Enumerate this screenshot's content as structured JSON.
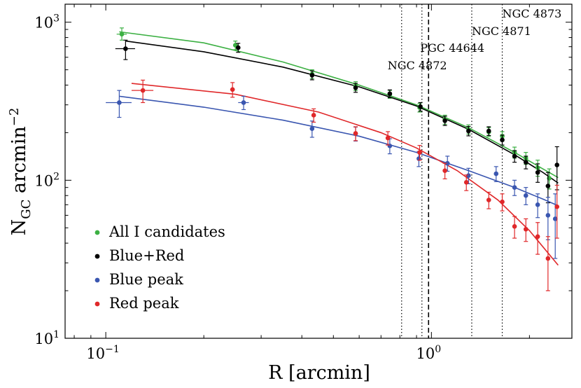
{
  "chart_data": {
    "type": "scatter",
    "xlabel": "R [arcmin]",
    "ylabel_main": "N",
    "ylabel_sub": "GC",
    "ylabel_rest": " arcmin",
    "ylabel_sup": "−2",
    "x_scale": "log",
    "y_scale": "log",
    "xlim": [
      0.075,
      2.7
    ],
    "ylim": [
      10,
      1300
    ],
    "x_ticks": [
      {
        "value": 0.1,
        "base": "10",
        "exp": "−1"
      },
      {
        "value": 1,
        "base": "10",
        "exp": "0"
      }
    ],
    "y_ticks": [
      {
        "value": 10,
        "base": "10",
        "exp": "1"
      },
      {
        "value": 100,
        "base": "10",
        "exp": "2"
      },
      {
        "value": 1000,
        "base": "10",
        "exp": "3"
      }
    ],
    "grid": false,
    "legend_position": "bottom-left",
    "series": [
      {
        "name": "All I candidates",
        "color": "#3cb043",
        "points": [
          {
            "x": 0.112,
            "y": 840,
            "yerr": [
              70,
              80
            ],
            "xerr": [
              0.004,
              0.004
            ]
          },
          {
            "x": 0.25,
            "y": 715,
            "yerr": [
              45,
              45
            ],
            "xerr": [
              0.004,
              0.004
            ]
          },
          {
            "x": 0.43,
            "y": 470,
            "yerr": [
              30,
              30
            ],
            "xerr": [
              0.004,
              0.004
            ]
          },
          {
            "x": 0.585,
            "y": 395,
            "yerr": [
              25,
              25
            ],
            "xerr": [
              0.005,
              0.005
            ]
          },
          {
            "x": 0.745,
            "y": 350,
            "yerr": [
              20,
              20
            ],
            "xerr": [
              0.005,
              0.005
            ]
          },
          {
            "x": 0.92,
            "y": 288,
            "yerr": [
              18,
              18
            ],
            "xerr": [
              0.008,
              0.008
            ]
          },
          {
            "x": 1.1,
            "y": 242,
            "yerr": [
              16,
              16
            ],
            "xerr": [
              0.008,
              0.008
            ]
          },
          {
            "x": 1.3,
            "y": 210,
            "yerr": [
              14,
              14
            ],
            "xerr": [
              0.01,
              0.01
            ]
          },
          {
            "x": 1.5,
            "y": 202,
            "yerr": [
              13,
              13
            ],
            "xerr": [
              0.01,
              0.01
            ]
          },
          {
            "x": 1.65,
            "y": 190,
            "yerr": [
              13,
              13
            ],
            "xerr": [
              0.01,
              0.01
            ]
          },
          {
            "x": 1.8,
            "y": 150,
            "yerr": [
              12,
              12
            ],
            "xerr": [
              0.012,
              0.012
            ]
          },
          {
            "x": 1.95,
            "y": 138,
            "yerr": [
              12,
              12
            ],
            "xerr": [
              0.012,
              0.012
            ]
          },
          {
            "x": 2.12,
            "y": 120,
            "yerr": [
              14,
              14
            ],
            "xerr": [
              0.012,
              0.012
            ]
          },
          {
            "x": 2.3,
            "y": 103,
            "yerr": [
              15,
              15
            ],
            "xerr": [
              0.012,
              0.012
            ]
          }
        ],
        "fit": [
          [
            0.11,
            870
          ],
          [
            0.2,
            740
          ],
          [
            0.35,
            560
          ],
          [
            0.6,
            400
          ],
          [
            0.9,
            300
          ],
          [
            1.3,
            215
          ],
          [
            1.8,
            150
          ],
          [
            2.2,
            118
          ],
          [
            2.45,
            104
          ]
        ]
      },
      {
        "name": "Blue+Red",
        "color": "#000000",
        "points": [
          {
            "x": 0.115,
            "y": 680,
            "yerr": [
              100,
              90
            ],
            "xerr": [
              0.008,
              0.008
            ]
          },
          {
            "x": 0.255,
            "y": 690,
            "yerr": [
              45,
              45
            ],
            "xerr": [
              0.004,
              0.004
            ]
          },
          {
            "x": 0.43,
            "y": 462,
            "yerr": [
              30,
              30
            ],
            "xerr": [
              0.004,
              0.004
            ]
          },
          {
            "x": 0.585,
            "y": 385,
            "yerr": [
              25,
              25
            ],
            "xerr": [
              0.005,
              0.005
            ]
          },
          {
            "x": 0.745,
            "y": 353,
            "yerr": [
              20,
              20
            ],
            "xerr": [
              0.005,
              0.005
            ]
          },
          {
            "x": 0.925,
            "y": 292,
            "yerr": [
              18,
              18
            ],
            "xerr": [
              0.008,
              0.008
            ]
          },
          {
            "x": 1.1,
            "y": 238,
            "yerr": [
              16,
              16
            ],
            "xerr": [
              0.008,
              0.008
            ]
          },
          {
            "x": 1.3,
            "y": 205,
            "yerr": [
              14,
              14
            ],
            "xerr": [
              0.01,
              0.01
            ]
          },
          {
            "x": 1.5,
            "y": 205,
            "yerr": [
              13,
              13
            ],
            "xerr": [
              0.01,
              0.01
            ]
          },
          {
            "x": 1.65,
            "y": 180,
            "yerr": [
              13,
              13
            ],
            "xerr": [
              0.01,
              0.01
            ]
          },
          {
            "x": 1.8,
            "y": 142,
            "yerr": [
              12,
              12
            ],
            "xerr": [
              0.012,
              0.012
            ]
          },
          {
            "x": 1.95,
            "y": 130,
            "yerr": [
              12,
              12
            ],
            "xerr": [
              0.012,
              0.012
            ]
          },
          {
            "x": 2.12,
            "y": 112,
            "yerr": [
              15,
              15
            ],
            "xerr": [
              0.012,
              0.012
            ]
          },
          {
            "x": 2.28,
            "y": 92,
            "yerr": [
              20,
              20
            ],
            "xerr": [
              0.012,
              0.012
            ]
          },
          {
            "x": 2.43,
            "y": 125,
            "yerr": [
              38,
              38
            ],
            "xerr": [
              0.012,
              0.012
            ]
          }
        ],
        "fit": [
          [
            0.115,
            760
          ],
          [
            0.2,
            650
          ],
          [
            0.35,
            520
          ],
          [
            0.6,
            390
          ],
          [
            0.9,
            295
          ],
          [
            1.3,
            210
          ],
          [
            1.8,
            145
          ],
          [
            2.2,
            112
          ],
          [
            2.45,
            96
          ]
        ]
      },
      {
        "name": "Blue peak",
        "color": "#3a56b0",
        "points": [
          {
            "x": 0.11,
            "y": 310,
            "yerr": [
              60,
              60
            ],
            "xerr": [
              0.01,
              0.01
            ]
          },
          {
            "x": 0.265,
            "y": 310,
            "yerr": [
              30,
              30
            ],
            "xerr": [
              0.01,
              0.01
            ]
          },
          {
            "x": 0.43,
            "y": 212,
            "yerr": [
              25,
              25
            ],
            "xerr": [
              0.004,
              0.004
            ]
          },
          {
            "x": 0.585,
            "y": 197,
            "yerr": [
              20,
              20
            ],
            "xerr": [
              0.005,
              0.005
            ]
          },
          {
            "x": 0.745,
            "y": 165,
            "yerr": [
              18,
              18
            ],
            "xerr": [
              0.005,
              0.005
            ]
          },
          {
            "x": 0.915,
            "y": 137,
            "yerr": [
              15,
              15
            ],
            "xerr": [
              0.008,
              0.008
            ]
          },
          {
            "x": 1.12,
            "y": 128,
            "yerr": [
              14,
              14
            ],
            "xerr": [
              0.008,
              0.008
            ]
          },
          {
            "x": 1.3,
            "y": 107,
            "yerr": [
              12,
              12
            ],
            "xerr": [
              0.01,
              0.01
            ]
          },
          {
            "x": 1.58,
            "y": 110,
            "yerr": [
              12,
              12
            ],
            "xerr": [
              0.01,
              0.01
            ]
          },
          {
            "x": 1.8,
            "y": 90,
            "yerr": [
              10,
              10
            ],
            "xerr": [
              0.012,
              0.012
            ]
          },
          {
            "x": 1.95,
            "y": 80,
            "yerr": [
              10,
              10
            ],
            "xerr": [
              0.012,
              0.012
            ]
          },
          {
            "x": 2.12,
            "y": 70,
            "yerr": [
              12,
              12
            ],
            "xerr": [
              0.012,
              0.012
            ]
          },
          {
            "x": 2.28,
            "y": 60,
            "yerr": [
              18,
              18
            ],
            "xerr": [
              0.012,
              0.012
            ]
          },
          {
            "x": 2.4,
            "y": 57,
            "yerr": [
              25,
              25
            ],
            "xerr": [
              0.012,
              0.012
            ]
          }
        ],
        "fit": [
          [
            0.11,
            340
          ],
          [
            0.2,
            290
          ],
          [
            0.35,
            240
          ],
          [
            0.6,
            190
          ],
          [
            0.9,
            150
          ],
          [
            1.3,
            115
          ],
          [
            1.8,
            90
          ],
          [
            2.2,
            76
          ],
          [
            2.45,
            69
          ]
        ]
      },
      {
        "name": "Red peak",
        "color": "#e0282a",
        "points": [
          {
            "x": 0.13,
            "y": 370,
            "yerr": [
              60,
              60
            ],
            "xerr": [
              0.01,
              0.01
            ]
          },
          {
            "x": 0.245,
            "y": 375,
            "yerr": [
              40,
              40
            ],
            "xerr": [
              0.004,
              0.004
            ]
          },
          {
            "x": 0.435,
            "y": 258,
            "yerr": [
              25,
              25
            ],
            "xerr": [
              0.004,
              0.004
            ]
          },
          {
            "x": 0.585,
            "y": 198,
            "yerr": [
              20,
              20
            ],
            "xerr": [
              0.005,
              0.005
            ]
          },
          {
            "x": 0.735,
            "y": 185,
            "yerr": [
              18,
              18
            ],
            "xerr": [
              0.005,
              0.005
            ]
          },
          {
            "x": 0.92,
            "y": 150,
            "yerr": [
              16,
              16
            ],
            "xerr": [
              0.008,
              0.008
            ]
          },
          {
            "x": 1.1,
            "y": 115,
            "yerr": [
              13,
              13
            ],
            "xerr": [
              0.008,
              0.008
            ]
          },
          {
            "x": 1.28,
            "y": 97,
            "yerr": [
              11,
              11
            ],
            "xerr": [
              0.01,
              0.01
            ]
          },
          {
            "x": 1.5,
            "y": 75,
            "yerr": [
              9,
              9
            ],
            "xerr": [
              0.01,
              0.01
            ]
          },
          {
            "x": 1.65,
            "y": 73,
            "yerr": [
              9,
              9
            ],
            "xerr": [
              0.01,
              0.01
            ]
          },
          {
            "x": 1.8,
            "y": 51,
            "yerr": [
              8,
              8
            ],
            "xerr": [
              0.012,
              0.012
            ]
          },
          {
            "x": 1.95,
            "y": 49,
            "yerr": [
              8,
              8
            ],
            "xerr": [
              0.012,
              0.012
            ]
          },
          {
            "x": 2.12,
            "y": 44,
            "yerr": [
              10,
              10
            ],
            "xerr": [
              0.012,
              0.012
            ]
          },
          {
            "x": 2.28,
            "y": 32,
            "yerr": [
              12,
              12
            ],
            "xerr": [
              0.012,
              0.012
            ]
          },
          {
            "x": 2.43,
            "y": 68,
            "yerr": [
              25,
              25
            ],
            "xerr": [
              0.012,
              0.012
            ]
          }
        ],
        "fit": [
          [
            0.12,
            410
          ],
          [
            0.25,
            350
          ],
          [
            0.45,
            270
          ],
          [
            0.7,
            200
          ],
          [
            0.9,
            160
          ],
          [
            1.2,
            115
          ],
          [
            1.6,
            75
          ],
          [
            2.0,
            48
          ],
          [
            2.45,
            29
          ]
        ]
      }
    ],
    "vertical_lines": [
      {
        "x": 0.81,
        "style": "dotted",
        "label": "NGC 4872"
      },
      {
        "x": 0.935,
        "style": "dotted",
        "label": ""
      },
      {
        "x": 0.98,
        "style": "dashed",
        "label": "PGC 44644"
      },
      {
        "x": 1.33,
        "style": "dotted",
        "label": "NGC 4871"
      },
      {
        "x": 1.65,
        "style": "dotted",
        "label": "NGC 4873"
      }
    ]
  }
}
